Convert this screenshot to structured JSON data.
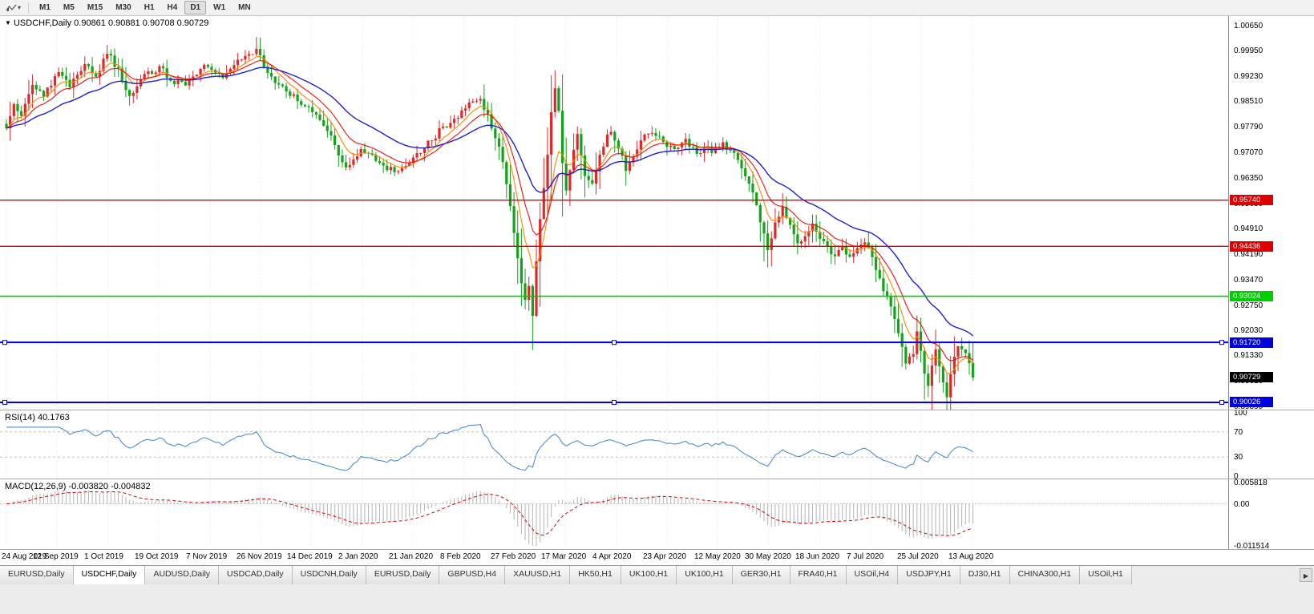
{
  "toolbar": {
    "timeframes": [
      {
        "label": "M1",
        "active": false
      },
      {
        "label": "M5",
        "active": false
      },
      {
        "label": "M15",
        "active": false
      },
      {
        "label": "M30",
        "active": false
      },
      {
        "label": "H1",
        "active": false
      },
      {
        "label": "H4",
        "active": false
      },
      {
        "label": "D1",
        "active": true
      },
      {
        "label": "W1",
        "active": false
      },
      {
        "label": "MN",
        "active": false
      }
    ]
  },
  "chart_header": {
    "dropdown_icon": "▼",
    "title": "USDCHF,Daily 0.90861 0.90881 0.90708 0.90729",
    "symbol": "USDCHF",
    "period": "Daily",
    "open": "0.90861",
    "high": "0.90881",
    "low": "0.90708",
    "close": "0.90729"
  },
  "price_axis": {
    "labels": [
      "1.00650",
      "0.99950",
      "0.99230",
      "0.98510",
      "0.97790",
      "0.97070",
      "0.96350",
      "0.95630",
      "0.94910",
      "0.94190",
      "0.93470",
      "0.92750",
      "0.92030",
      "0.91330",
      "0.90610",
      "0.89890"
    ],
    "current_price_tag": {
      "label": "0.90729",
      "value": 0.90729,
      "bg": "#000000",
      "fg": "#ffffff"
    }
  },
  "levels": [
    {
      "label": "0.95740",
      "value": 0.9574,
      "color": "#dd0000",
      "width": 1.4,
      "handles": false
    },
    {
      "label": "0.94436",
      "value": 0.94436,
      "color": "#dd0000",
      "width": 1.4,
      "handles": false
    },
    {
      "label": "0.93024",
      "value": 0.93024,
      "color": "#00cc00",
      "width": 1.6,
      "handles": false
    },
    {
      "label": "0.91720",
      "value": 0.9172,
      "color": "#0000dd",
      "width": 2,
      "handles": true
    },
    {
      "label": "0.90026",
      "value": 0.90026,
      "color": "#0000dd",
      "width": 2,
      "handles": true
    }
  ],
  "rsi_panel": {
    "label": "RSI(14) 40.1763",
    "name": "RSI",
    "period": 14,
    "current": 40.1763,
    "line_color": "#4f8fd0",
    "upper_level": 70,
    "lower_level": 30,
    "axis_labels": [
      "100",
      "70",
      "30",
      "0"
    ]
  },
  "macd_panel": {
    "label": "MACD(12,26,9) -0.003820 -0.004832",
    "name": "MACD",
    "params": "12,26,9",
    "macd_value": -0.00382,
    "signal_value": -0.004832,
    "axis_max": "0.005818",
    "axis_zero": "0.00",
    "axis_min": "-0.011514",
    "hist_color": "#b4b4b4",
    "signal_color": "#dd0000"
  },
  "x_axis": {
    "labels": [
      "24 Aug 2019",
      "12 Sep 2019",
      "1 Oct 2019",
      "19 Oct 2019",
      "7 Nov 2019",
      "26 Nov 2019",
      "14 Dec 2019",
      "2 Jan 2020",
      "21 Jan 2020",
      "8 Feb 2020",
      "27 Feb 2020",
      "17 Mar 2020",
      "4 Apr 2020",
      "23 Apr 2020",
      "12 May 2020",
      "30 May 2020",
      "18 Jun 2020",
      "7 Jul 2020",
      "25 Jul 2020",
      "13 Aug 2020"
    ]
  },
  "tabs": {
    "items": [
      {
        "label": "EURUSD,Daily",
        "active": false
      },
      {
        "label": "USDCHF,Daily",
        "active": true
      },
      {
        "label": "AUDUSD,Daily",
        "active": false
      },
      {
        "label": "USDCAD,Daily",
        "active": false
      },
      {
        "label": "USDCNH,Daily",
        "active": false
      },
      {
        "label": "EURUSD,Daily",
        "active": false
      },
      {
        "label": "GBPUSD,H4",
        "active": false
      },
      {
        "label": "XAUUSD,H1",
        "active": false
      },
      {
        "label": "HK50,H1",
        "active": false
      },
      {
        "label": "UK100,H1",
        "active": false
      },
      {
        "label": "UK100,H1",
        "active": false
      },
      {
        "label": "GER30,H1",
        "active": false
      },
      {
        "label": "FRA40,H1",
        "active": false
      },
      {
        "label": "USOil,H4",
        "active": false
      },
      {
        "label": "USDJPY,H1",
        "active": false
      },
      {
        "label": "DJ30,H1",
        "active": false
      },
      {
        "label": "CHINA300,H1",
        "active": false
      },
      {
        "label": "USOil,H1",
        "active": false
      }
    ],
    "scroll_right": "▶"
  },
  "chart_data": {
    "type": "candlestick",
    "symbol": "USDCHF",
    "timeframe": "Daily",
    "date_start": "24 Aug 2019",
    "date_end": "18 Aug 2020",
    "price_min_visible": 0.8989,
    "price_max_visible": 1.0065,
    "candle_count": 260,
    "up_color": "#e02828",
    "down_color": "#12a31a",
    "close_anchors": [
      [
        0,
        0.9775
      ],
      [
        2,
        0.9845
      ],
      [
        4,
        0.9815
      ],
      [
        7,
        0.99
      ],
      [
        10,
        0.987
      ],
      [
        14,
        0.9935
      ],
      [
        17,
        0.9895
      ],
      [
        21,
        0.996
      ],
      [
        24,
        0.992
      ],
      [
        27,
        0.999
      ],
      [
        30,
        0.9945
      ],
      [
        33,
        0.987
      ],
      [
        36,
        0.9915
      ],
      [
        41,
        0.995
      ],
      [
        44,
        0.9915
      ],
      [
        48,
        0.99
      ],
      [
        52,
        0.9945
      ],
      [
        54,
        0.995
      ],
      [
        58,
        0.992
      ],
      [
        61,
        0.9955
      ],
      [
        64,
        0.998
      ],
      [
        67,
        1.0
      ],
      [
        69,
        0.995
      ],
      [
        72,
        0.9905
      ],
      [
        75,
        0.988
      ],
      [
        78,
        0.9855
      ],
      [
        81,
        0.9835
      ],
      [
        84,
        0.98
      ],
      [
        87,
        0.9755
      ],
      [
        89,
        0.97
      ],
      [
        91,
        0.9665
      ],
      [
        95,
        0.972
      ],
      [
        98,
        0.97
      ],
      [
        101,
        0.967
      ],
      [
        104,
        0.9655
      ],
      [
        108,
        0.968
      ],
      [
        111,
        0.971
      ],
      [
        114,
        0.9745
      ],
      [
        117,
        0.978
      ],
      [
        120,
        0.9805
      ],
      [
        122,
        0.9825
      ],
      [
        125,
        0.985
      ],
      [
        127,
        0.986
      ],
      [
        129,
        0.9815
      ],
      [
        131,
        0.975
      ],
      [
        133,
        0.968
      ],
      [
        135,
        0.956
      ],
      [
        136,
        0.948
      ],
      [
        137,
        0.941
      ],
      [
        138,
        0.934
      ],
      [
        139,
        0.929
      ],
      [
        140,
        0.933
      ],
      [
        141,
        0.925
      ],
      [
        142,
        0.94
      ],
      [
        143,
        0.952
      ],
      [
        144,
        0.961
      ],
      [
        145,
        0.97
      ],
      [
        146,
        0.982
      ],
      [
        147,
        0.989
      ],
      [
        148,
        0.983
      ],
      [
        149,
        0.968
      ],
      [
        150,
        0.96
      ],
      [
        151,
        0.966
      ],
      [
        152,
        0.972
      ],
      [
        153,
        0.976
      ],
      [
        154,
        0.97
      ],
      [
        155,
        0.964
      ],
      [
        157,
        0.962
      ],
      [
        159,
        0.97
      ],
      [
        161,
        0.976
      ],
      [
        162,
        0.977
      ],
      [
        164,
        0.972
      ],
      [
        166,
        0.966
      ],
      [
        168,
        0.97
      ],
      [
        170,
        0.974
      ],
      [
        172,
        0.9765
      ],
      [
        176,
        0.974
      ],
      [
        179,
        0.9715
      ],
      [
        182,
        0.9745
      ],
      [
        185,
        0.9705
      ],
      [
        187,
        0.9725
      ],
      [
        189,
        0.971
      ],
      [
        192,
        0.9735
      ],
      [
        195,
        0.9705
      ],
      [
        197,
        0.9665
      ],
      [
        199,
        0.962
      ],
      [
        201,
        0.956
      ],
      [
        203,
        0.948
      ],
      [
        204,
        0.943
      ],
      [
        206,
        0.951
      ],
      [
        208,
        0.9555
      ],
      [
        210,
        0.9505
      ],
      [
        212,
        0.945
      ],
      [
        214,
        0.947
      ],
      [
        216,
        0.951
      ],
      [
        218,
        0.9465
      ],
      [
        220,
        0.944
      ],
      [
        222,
        0.9415
      ],
      [
        224,
        0.9445
      ],
      [
        226,
        0.9415
      ],
      [
        228,
        0.944
      ],
      [
        230,
        0.9455
      ],
      [
        232,
        0.941
      ],
      [
        234,
        0.935
      ],
      [
        236,
        0.93
      ],
      [
        238,
        0.924
      ],
      [
        240,
        0.916
      ],
      [
        241,
        0.911
      ],
      [
        243,
        0.914
      ],
      [
        244,
        0.92
      ],
      [
        245,
        0.915
      ],
      [
        246,
        0.9085
      ],
      [
        247,
        0.905
      ],
      [
        248,
        0.911
      ],
      [
        249,
        0.915
      ],
      [
        250,
        0.9105
      ],
      [
        251,
        0.906
      ],
      [
        252,
        0.902
      ],
      [
        253,
        0.908
      ],
      [
        254,
        0.9135
      ],
      [
        255,
        0.916
      ],
      [
        257,
        0.9145
      ],
      [
        258,
        0.911
      ],
      [
        259,
        0.90729
      ]
    ],
    "extremes": [
      {
        "index": 67,
        "high": 1.0035
      },
      {
        "index": 141,
        "low": 0.915
      },
      {
        "index": 147,
        "high": 0.992
      },
      {
        "index": 203,
        "low": 0.9401
      },
      {
        "index": 252,
        "low": 0.9003
      }
    ],
    "moving_averages": [
      {
        "period": 7,
        "color": "#ff8800",
        "method": "ema"
      },
      {
        "period": 13,
        "color": "#ee1111",
        "method": "ema"
      },
      {
        "period": 30,
        "color": "#2020cc",
        "method": "ema"
      }
    ],
    "indicators": {
      "rsi_period": 14,
      "macd": [
        12,
        26,
        9
      ]
    }
  }
}
